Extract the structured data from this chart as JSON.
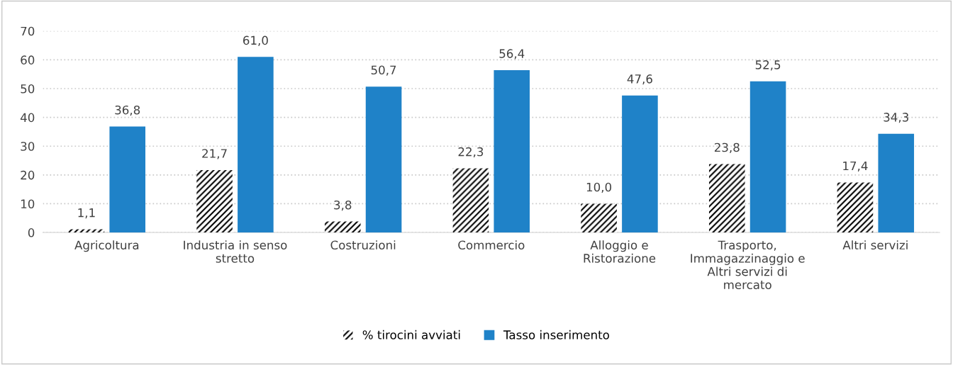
{
  "chart_data": {
    "type": "bar",
    "categories": [
      "Agricoltura",
      "Industria in senso\nstretto",
      "Costruzioni",
      "Commercio",
      "Alloggio e\nRistorazione",
      "Trasporto,\nImmagazzinaggio e\nAltri servizi di\nmercato",
      "Altri servizi"
    ],
    "series": [
      {
        "name": "% tirocini avviati",
        "color": "#000000",
        "values": [
          1.1,
          21.7,
          3.8,
          22.3,
          10.0,
          23.8,
          17.4
        ],
        "value_labels": [
          "1,1",
          "21,7",
          "3,8",
          "22,3",
          "10,0",
          "23,8",
          "17,4"
        ]
      },
      {
        "name": "Tasso inserimento",
        "color": "#1f82c8",
        "values": [
          36.8,
          61.0,
          50.7,
          56.4,
          47.6,
          52.5,
          34.3
        ],
        "value_labels": [
          "36,8",
          "61,0",
          "50,7",
          "56,4",
          "47,6",
          "52,5",
          "34,3"
        ]
      }
    ],
    "ylim": [
      0,
      70
    ],
    "yticks": [
      0,
      10,
      20,
      30,
      40,
      50,
      60,
      70
    ],
    "grid": "y",
    "legend": "bottom"
  }
}
